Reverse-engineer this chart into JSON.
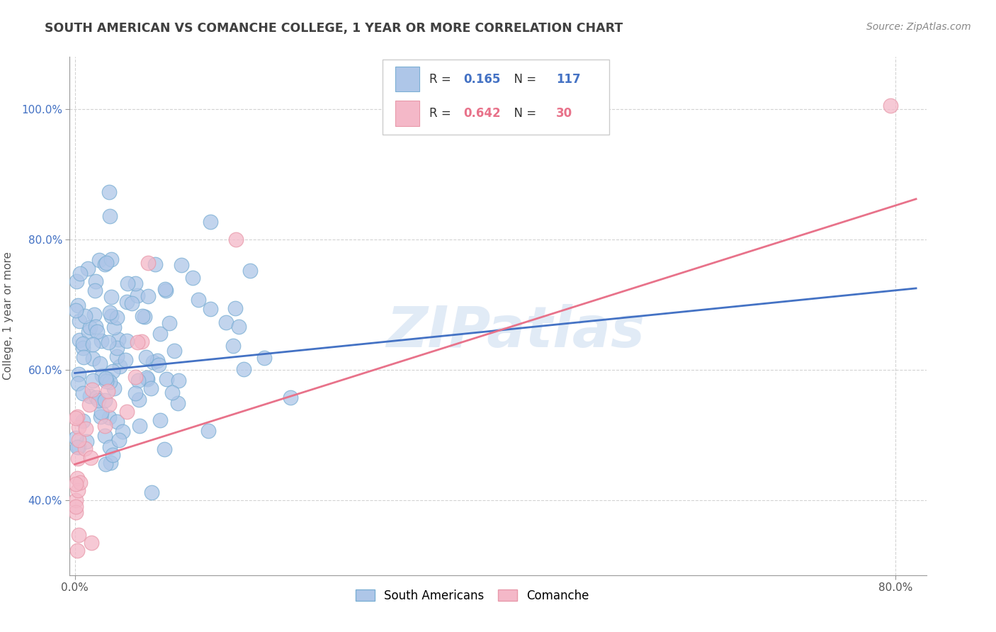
{
  "title": "SOUTH AMERICAN VS COMANCHE COLLEGE, 1 YEAR OR MORE CORRELATION CHART",
  "source": "Source: ZipAtlas.com",
  "ylabel_label": "College, 1 year or more",
  "watermark": "ZIPatlas",
  "blue_line_color": "#4472c4",
  "pink_line_color": "#e8728a",
  "blue_scatter_color": "#aec6e8",
  "pink_scatter_color": "#f4b8c8",
  "blue_scatter_edge": "#7bafd4",
  "pink_scatter_edge": "#e899aa",
  "background": "#ffffff",
  "grid_color": "#c8c8c8",
  "title_color": "#404040",
  "source_color": "#888888",
  "xlim": [
    -0.005,
    0.83
  ],
  "ylim": [
    0.285,
    1.08
  ],
  "blue_R": "0.165",
  "blue_N": "117",
  "pink_R": "0.642",
  "pink_N": "30",
  "blue_line_x": [
    0.0,
    0.82
  ],
  "blue_line_y": [
    0.595,
    0.725
  ],
  "pink_line_x": [
    0.0,
    0.82
  ],
  "pink_line_y": [
    0.455,
    0.862
  ],
  "x_tick_vals": [
    0.0,
    0.8
  ],
  "x_tick_labels": [
    "0.0%",
    "80.0%"
  ],
  "y_tick_vals": [
    0.4,
    0.6,
    0.8,
    1.0
  ],
  "y_tick_labels": [
    "40.0%",
    "60.0%",
    "80.0%",
    "100.0%"
  ]
}
